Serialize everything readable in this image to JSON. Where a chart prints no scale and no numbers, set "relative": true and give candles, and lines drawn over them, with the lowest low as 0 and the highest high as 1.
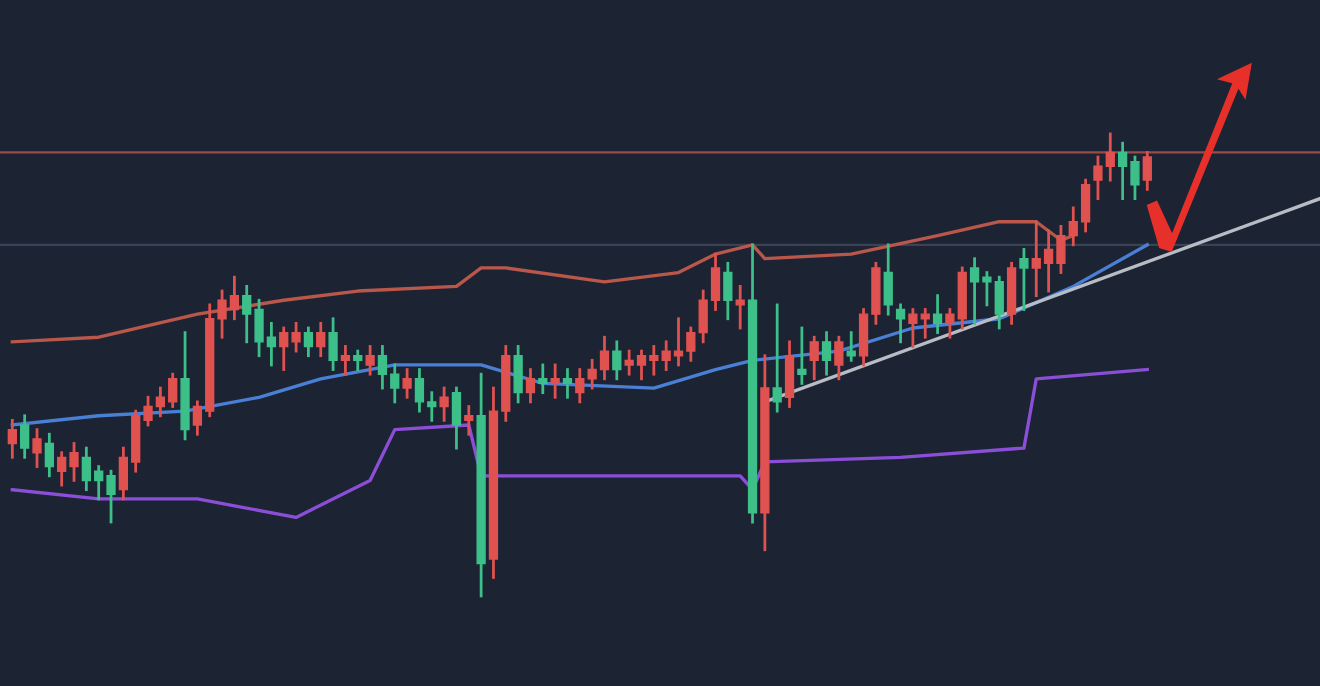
{
  "chart_data": {
    "type": "candlestick",
    "relative": true,
    "categories": [
      null,
      null,
      null,
      null,
      null,
      null,
      null,
      null,
      null,
      null,
      null,
      null,
      null,
      null,
      null,
      null,
      null,
      null,
      null,
      null,
      null,
      null,
      null,
      null,
      null,
      null,
      null,
      null,
      null,
      null,
      null,
      null,
      null,
      null,
      null,
      null,
      null,
      null,
      null,
      null,
      null,
      null,
      null,
      null,
      null,
      null,
      null,
      null,
      null,
      null,
      null,
      null,
      null,
      null,
      null,
      null,
      null,
      null,
      null,
      null,
      null,
      null,
      null,
      null,
      null,
      null,
      null,
      null,
      null,
      null,
      null,
      null,
      null,
      null,
      null,
      null,
      null,
      null,
      null,
      null,
      null,
      null,
      null,
      null,
      null,
      null,
      null,
      null,
      null,
      null,
      null,
      null,
      null,
      null,
      null,
      null,
      null,
      null,
      null,
      null,
      null,
      null,
      null,
      null,
      null,
      null,
      null
    ],
    "ohlc": [
      [
        0.33,
        0.38,
        0.3,
        0.36
      ],
      [
        0.37,
        0.39,
        0.3,
        0.32
      ],
      [
        0.31,
        0.36,
        0.28,
        0.34
      ],
      [
        0.33,
        0.35,
        0.26,
        0.28
      ],
      [
        0.27,
        0.31,
        0.24,
        0.3
      ],
      [
        0.28,
        0.33,
        0.25,
        0.31
      ],
      [
        0.3,
        0.32,
        0.23,
        0.25
      ],
      [
        0.27,
        0.28,
        0.21,
        0.25
      ],
      [
        0.26,
        0.27,
        0.16,
        0.22
      ],
      [
        0.23,
        0.32,
        0.21,
        0.3
      ],
      [
        0.29,
        0.4,
        0.27,
        0.39
      ],
      [
        0.38,
        0.43,
        0.37,
        0.41
      ],
      [
        0.41,
        0.45,
        0.39,
        0.43
      ],
      [
        0.42,
        0.48,
        0.41,
        0.47
      ],
      [
        0.47,
        0.57,
        0.34,
        0.36
      ],
      [
        0.37,
        0.42,
        0.35,
        0.41
      ],
      [
        0.4,
        0.63,
        0.39,
        0.6
      ],
      [
        0.6,
        0.66,
        0.56,
        0.64
      ],
      [
        0.62,
        0.69,
        0.6,
        0.65
      ],
      [
        0.65,
        0.67,
        0.55,
        0.61
      ],
      [
        0.62,
        0.64,
        0.52,
        0.55
      ],
      [
        0.56,
        0.59,
        0.5,
        0.54
      ],
      [
        0.54,
        0.58,
        0.49,
        0.57
      ],
      [
        0.55,
        0.59,
        0.53,
        0.57
      ],
      [
        0.57,
        0.58,
        0.52,
        0.54
      ],
      [
        0.54,
        0.59,
        0.52,
        0.57
      ],
      [
        0.57,
        0.6,
        0.49,
        0.51
      ],
      [
        0.51,
        0.54,
        0.48,
        0.52
      ],
      [
        0.52,
        0.53,
        0.49,
        0.51
      ],
      [
        0.5,
        0.54,
        0.48,
        0.52
      ],
      [
        0.52,
        0.54,
        0.45,
        0.48
      ],
      [
        0.48,
        0.5,
        0.42,
        0.45
      ],
      [
        0.45,
        0.49,
        0.43,
        0.47
      ],
      [
        0.47,
        0.49,
        0.4,
        0.42
      ],
      [
        0.42,
        0.44,
        0.38,
        0.41
      ],
      [
        0.41,
        0.45,
        0.38,
        0.43
      ],
      [
        0.44,
        0.45,
        0.32,
        0.37
      ],
      [
        0.38,
        0.41,
        0.35,
        0.39
      ],
      [
        0.39,
        0.48,
        0.0,
        0.07
      ],
      [
        0.08,
        0.45,
        0.04,
        0.4
      ],
      [
        0.4,
        0.54,
        0.38,
        0.52
      ],
      [
        0.52,
        0.54,
        0.42,
        0.44
      ],
      [
        0.44,
        0.49,
        0.42,
        0.47
      ],
      [
        0.47,
        0.5,
        0.44,
        0.46
      ],
      [
        0.46,
        0.5,
        0.43,
        0.47
      ],
      [
        0.47,
        0.49,
        0.43,
        0.46
      ],
      [
        0.44,
        0.49,
        0.42,
        0.47
      ],
      [
        0.47,
        0.51,
        0.45,
        0.49
      ],
      [
        0.49,
        0.56,
        0.47,
        0.53
      ],
      [
        0.53,
        0.55,
        0.47,
        0.49
      ],
      [
        0.5,
        0.53,
        0.48,
        0.51
      ],
      [
        0.5,
        0.53,
        0.47,
        0.52
      ],
      [
        0.51,
        0.54,
        0.48,
        0.52
      ],
      [
        0.51,
        0.55,
        0.49,
        0.53
      ],
      [
        0.52,
        0.6,
        0.5,
        0.53
      ],
      [
        0.53,
        0.58,
        0.51,
        0.57
      ],
      [
        0.57,
        0.66,
        0.55,
        0.64
      ],
      [
        0.64,
        0.74,
        0.62,
        0.71
      ],
      [
        0.7,
        0.72,
        0.6,
        0.64
      ],
      [
        0.63,
        0.67,
        0.58,
        0.64
      ],
      [
        0.64,
        0.76,
        0.16,
        0.18
      ],
      [
        0.18,
        0.52,
        0.1,
        0.45
      ],
      [
        0.45,
        0.63,
        0.4,
        0.42
      ],
      [
        0.43,
        0.55,
        0.41,
        0.52
      ],
      [
        0.49,
        0.58,
        0.46,
        0.48
      ],
      [
        0.51,
        0.56,
        0.47,
        0.55
      ],
      [
        0.55,
        0.57,
        0.48,
        0.51
      ],
      [
        0.5,
        0.56,
        0.47,
        0.55
      ],
      [
        0.53,
        0.57,
        0.51,
        0.52
      ],
      [
        0.52,
        0.62,
        0.5,
        0.61
      ],
      [
        0.61,
        0.72,
        0.59,
        0.71
      ],
      [
        0.7,
        0.76,
        0.61,
        0.63
      ],
      [
        0.62,
        0.63,
        0.55,
        0.6
      ],
      [
        0.59,
        0.62,
        0.54,
        0.61
      ],
      [
        0.6,
        0.62,
        0.56,
        0.61
      ],
      [
        0.61,
        0.65,
        0.57,
        0.59
      ],
      [
        0.59,
        0.62,
        0.56,
        0.61
      ],
      [
        0.6,
        0.71,
        0.58,
        0.7
      ],
      [
        0.71,
        0.73,
        0.59,
        0.68
      ],
      [
        0.69,
        0.7,
        0.63,
        0.68
      ],
      [
        0.68,
        0.69,
        0.58,
        0.61
      ],
      [
        0.61,
        0.72,
        0.59,
        0.71
      ],
      [
        0.73,
        0.75,
        0.62,
        0.71
      ],
      [
        0.71,
        0.81,
        0.65,
        0.73
      ],
      [
        0.72,
        0.79,
        0.66,
        0.75
      ],
      [
        0.72,
        0.8,
        0.7,
        0.78
      ],
      [
        0.78,
        0.84,
        0.76,
        0.81
      ],
      [
        0.81,
        0.9,
        0.79,
        0.89
      ],
      [
        0.9,
        0.95,
        0.86,
        0.93
      ],
      [
        0.93,
        1.0,
        0.9,
        0.96
      ],
      [
        0.96,
        0.98,
        0.86,
        0.93
      ],
      [
        0.94,
        0.95,
        0.86,
        0.89
      ],
      [
        0.9,
        0.96,
        0.88,
        0.95
      ],
      null,
      null,
      null,
      null,
      null,
      null,
      null,
      null,
      null,
      null,
      null,
      null,
      null,
      null
    ],
    "colors": [
      "#e0524f",
      "#3dbf8a",
      "#e0524f",
      "#3dbf8a",
      "#e0524f",
      "#e0524f",
      "#3dbf8a",
      "#3dbf8a",
      "#3dbf8a",
      "#e0524f",
      "#e0524f",
      "#e0524f",
      "#e0524f",
      "#e0524f",
      "#3dbf8a",
      "#e0524f",
      "#e0524f",
      "#e0524f",
      "#e0524f",
      "#3dbf8a",
      "#3dbf8a",
      "#3dbf8a",
      "#e0524f",
      "#e0524f",
      "#3dbf8a",
      "#e0524f",
      "#3dbf8a",
      "#e0524f",
      "#3dbf8a",
      "#e0524f",
      "#3dbf8a",
      "#3dbf8a",
      "#e0524f",
      "#3dbf8a",
      "#3dbf8a",
      "#e0524f",
      "#3dbf8a",
      "#e0524f",
      "#3dbf8a",
      "#e0524f",
      "#e0524f",
      "#3dbf8a",
      "#e0524f",
      "#3dbf8a",
      "#e0524f",
      "#3dbf8a",
      "#e0524f",
      "#e0524f",
      "#e0524f",
      "#3dbf8a",
      "#e0524f",
      "#e0524f",
      "#e0524f",
      "#e0524f",
      "#e0524f",
      "#e0524f",
      "#e0524f",
      "#e0524f",
      "#3dbf8a",
      "#e0524f",
      "#3dbf8a",
      "#e0524f",
      "#3dbf8a",
      "#e0524f",
      "#3dbf8a",
      "#e0524f",
      "#3dbf8a",
      "#e0524f",
      "#3dbf8a",
      "#e0524f",
      "#e0524f",
      "#3dbf8a",
      "#3dbf8a",
      "#e0524f",
      "#e0524f",
      "#3dbf8a",
      "#e0524f",
      "#e0524f",
      "#3dbf8a",
      "#3dbf8a",
      "#3dbf8a",
      "#e0524f",
      "#3dbf8a",
      "#e0524f",
      "#e0524f",
      "#e0524f",
      "#e0524f",
      "#e0524f",
      "#e0524f",
      "#e0524f",
      "#3dbf8a",
      "#3dbf8a",
      "#e0524f",
      null,
      null,
      null,
      null,
      null,
      null,
      null,
      null,
      null,
      null,
      null,
      null,
      null,
      null
    ],
    "series": [
      {
        "type": "line",
        "color": "#b8574a",
        "values": [
          0.55,
          null,
          null,
          null,
          null,
          null,
          null,
          0.56,
          null,
          null,
          null,
          null,
          null,
          null,
          null,
          0.61,
          null,
          null,
          null,
          null,
          null,
          null,
          0.64,
          null,
          null,
          null,
          null,
          null,
          0.66,
          null,
          null,
          null,
          null,
          null,
          null,
          null,
          0.67,
          null,
          0.71,
          null,
          0.71,
          null,
          null,
          null,
          null,
          null,
          null,
          null,
          0.68,
          null,
          null,
          null,
          null,
          null,
          0.7,
          null,
          null,
          0.74,
          null,
          null,
          0.76,
          0.73,
          null,
          null,
          null,
          null,
          null,
          null,
          0.74,
          null,
          null,
          null,
          null,
          null,
          null,
          0.78,
          null,
          null,
          null,
          null,
          0.81,
          null,
          null,
          0.81,
          null,
          0.77,
          0.78,
          null,
          null,
          null,
          null,
          null,
          null,
          null,
          null,
          null,
          null,
          null,
          null,
          null,
          null,
          null,
          null,
          null,
          null,
          null,
          null
        ]
      },
      {
        "type": "line",
        "color": "#4a7fd6",
        "values": [
          0.37,
          null,
          null,
          null,
          null,
          null,
          null,
          0.39,
          null,
          null,
          null,
          null,
          null,
          null,
          0.4,
          null,
          null,
          null,
          null,
          null,
          0.43,
          null,
          null,
          null,
          null,
          0.47,
          null,
          null,
          null,
          null,
          null,
          0.5,
          null,
          null,
          null,
          null,
          null,
          null,
          0.5,
          null,
          null,
          null,
          null,
          0.46,
          null,
          null,
          null,
          null,
          null,
          null,
          null,
          null,
          0.45,
          null,
          null,
          null,
          null,
          0.49,
          null,
          null,
          0.51,
          null,
          null,
          null,
          null,
          null,
          null,
          0.53,
          null,
          null,
          null,
          null,
          null,
          0.58,
          null,
          null,
          null,
          null,
          null,
          null,
          0.6,
          null,
          null,
          null,
          null,
          null,
          0.67,
          null,
          null,
          null,
          null,
          null,
          0.76,
          null,
          null,
          null,
          null,
          null,
          null,
          null,
          null,
          null,
          null,
          null,
          null,
          null,
          null
        ]
      },
      {
        "type": "line",
        "color": "#8a4fd6",
        "values": [
          0.23,
          null,
          null,
          null,
          null,
          null,
          null,
          0.21,
          null,
          null,
          null,
          null,
          null,
          null,
          null,
          0.21,
          null,
          null,
          null,
          null,
          null,
          null,
          null,
          0.17,
          null,
          null,
          null,
          null,
          null,
          0.25,
          null,
          0.36,
          null,
          null,
          null,
          null,
          null,
          0.37,
          0.26,
          null,
          null,
          null,
          null,
          null,
          null,
          null,
          null,
          null,
          0.26,
          null,
          null,
          null,
          null,
          null,
          null,
          null,
          null,
          null,
          null,
          0.26,
          0.23,
          0.29,
          null,
          null,
          null,
          null,
          null,
          null,
          null,
          null,
          null,
          null,
          0.3,
          null,
          null,
          null,
          null,
          null,
          null,
          null,
          null,
          null,
          0.32,
          0.47,
          null,
          null,
          null,
          null,
          null,
          null,
          null,
          null,
          0.49,
          null,
          null,
          null,
          null,
          null,
          null,
          null,
          null,
          null,
          null,
          null,
          null,
          null,
          null
        ]
      },
      {
        "type": "line",
        "color": "#b8bcc4",
        "values": [
          null,
          null,
          null,
          null,
          null,
          null,
          null,
          null,
          null,
          null,
          null,
          null,
          null,
          null,
          null,
          null,
          null,
          null,
          null,
          null,
          null,
          null,
          null,
          null,
          null,
          null,
          null,
          null,
          null,
          null,
          null,
          null,
          null,
          null,
          null,
          null,
          null,
          null,
          null,
          null,
          null,
          null,
          null,
          null,
          null,
          null,
          null,
          null,
          null,
          null,
          null,
          null,
          null,
          null,
          null,
          null,
          null,
          null,
          null,
          null,
          null,
          0.42,
          null,
          null,
          null,
          null,
          null,
          null,
          null,
          null,
          null,
          null,
          null,
          null,
          null,
          null,
          null,
          null,
          null,
          null,
          null,
          null,
          null,
          null,
          null,
          null,
          null,
          null,
          null,
          null,
          null,
          null,
          null,
          null,
          null,
          null,
          null,
          null,
          null,
          null,
          null,
          null,
          null,
          null,
          null,
          null,
          0.86
        ]
      }
    ],
    "ref_lines": [
      {
        "axis": "y",
        "value": 0.96,
        "color": "#9a4a48"
      },
      {
        "axis": "y",
        "value": 0.76,
        "color": "#3a4256"
      }
    ]
  }
}
